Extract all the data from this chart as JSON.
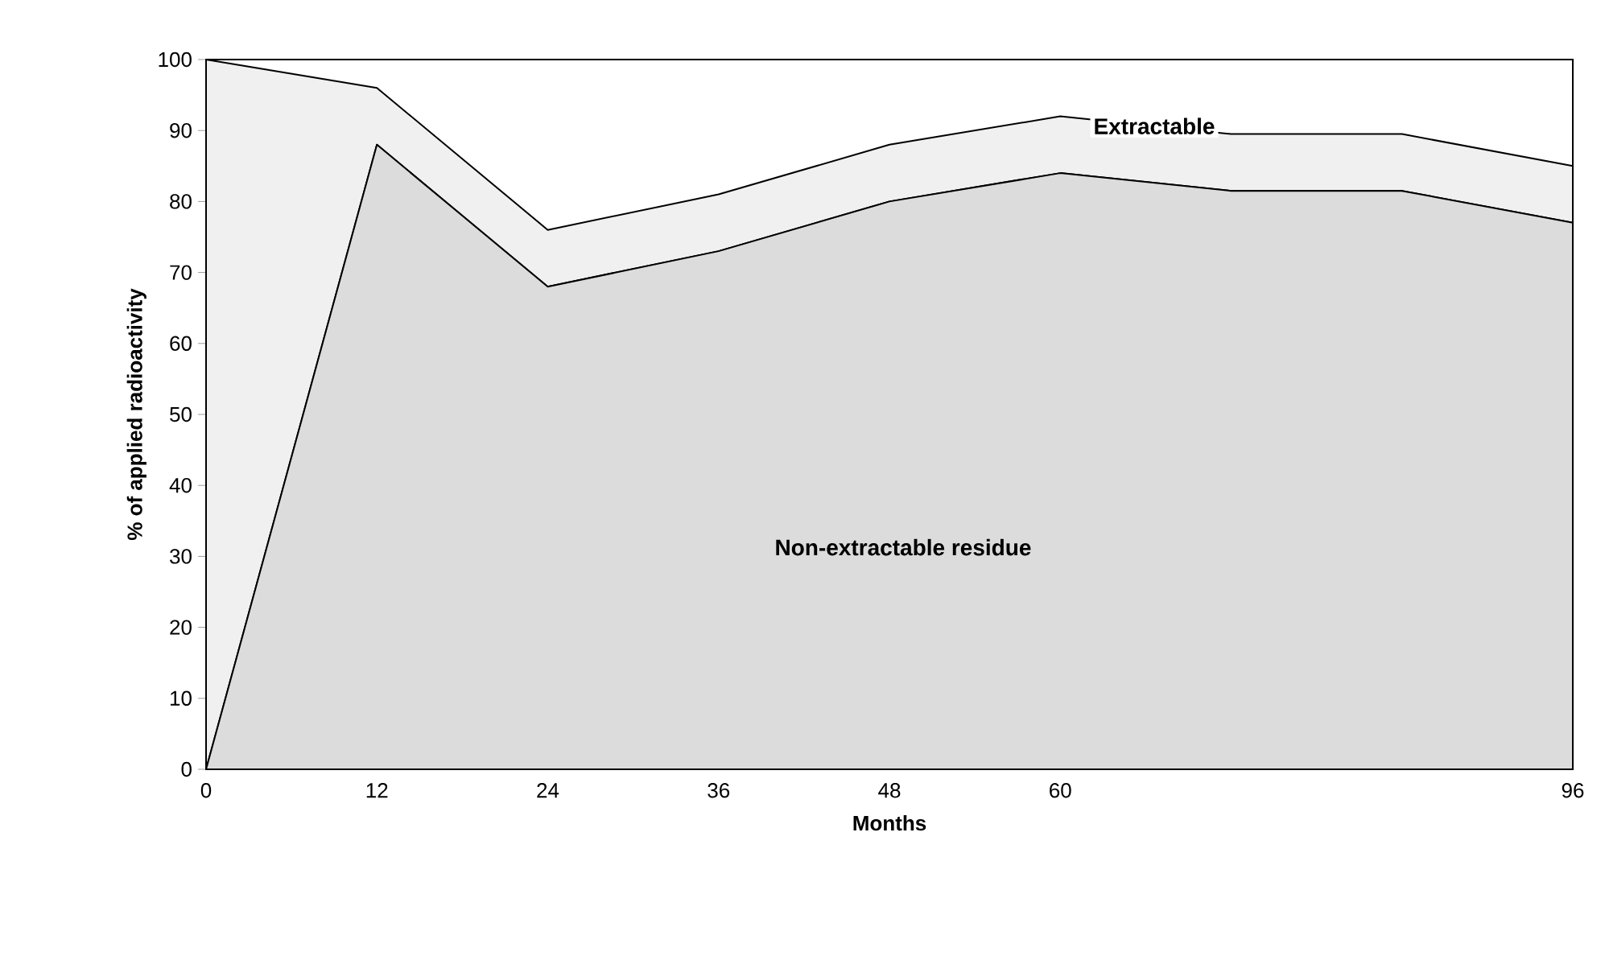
{
  "chart_data": {
    "type": "area",
    "stacked": true,
    "xlabel": "Months",
    "ylabel": "% of applied radioactivity",
    "x": [
      0,
      12,
      24,
      36,
      48,
      60,
      72,
      84,
      96
    ],
    "series": [
      {
        "name": "Non-extractable residue",
        "color": "#dcdcdc",
        "values": [
          0,
          88,
          68,
          73,
          80,
          84,
          81.5,
          81.5,
          77
        ]
      },
      {
        "name": "Extractable",
        "color": "#f0f0f0",
        "values": [
          100,
          8,
          8,
          8,
          8,
          8,
          8,
          8,
          8
        ]
      }
    ],
    "xlim": [
      0,
      96
    ],
    "xticks": [
      0,
      12,
      24,
      36,
      48,
      60,
      96
    ],
    "ylim": [
      0,
      100
    ],
    "yticks": [
      0,
      10,
      20,
      30,
      40,
      50,
      60,
      70,
      80,
      90,
      100
    ],
    "grid": false
  }
}
